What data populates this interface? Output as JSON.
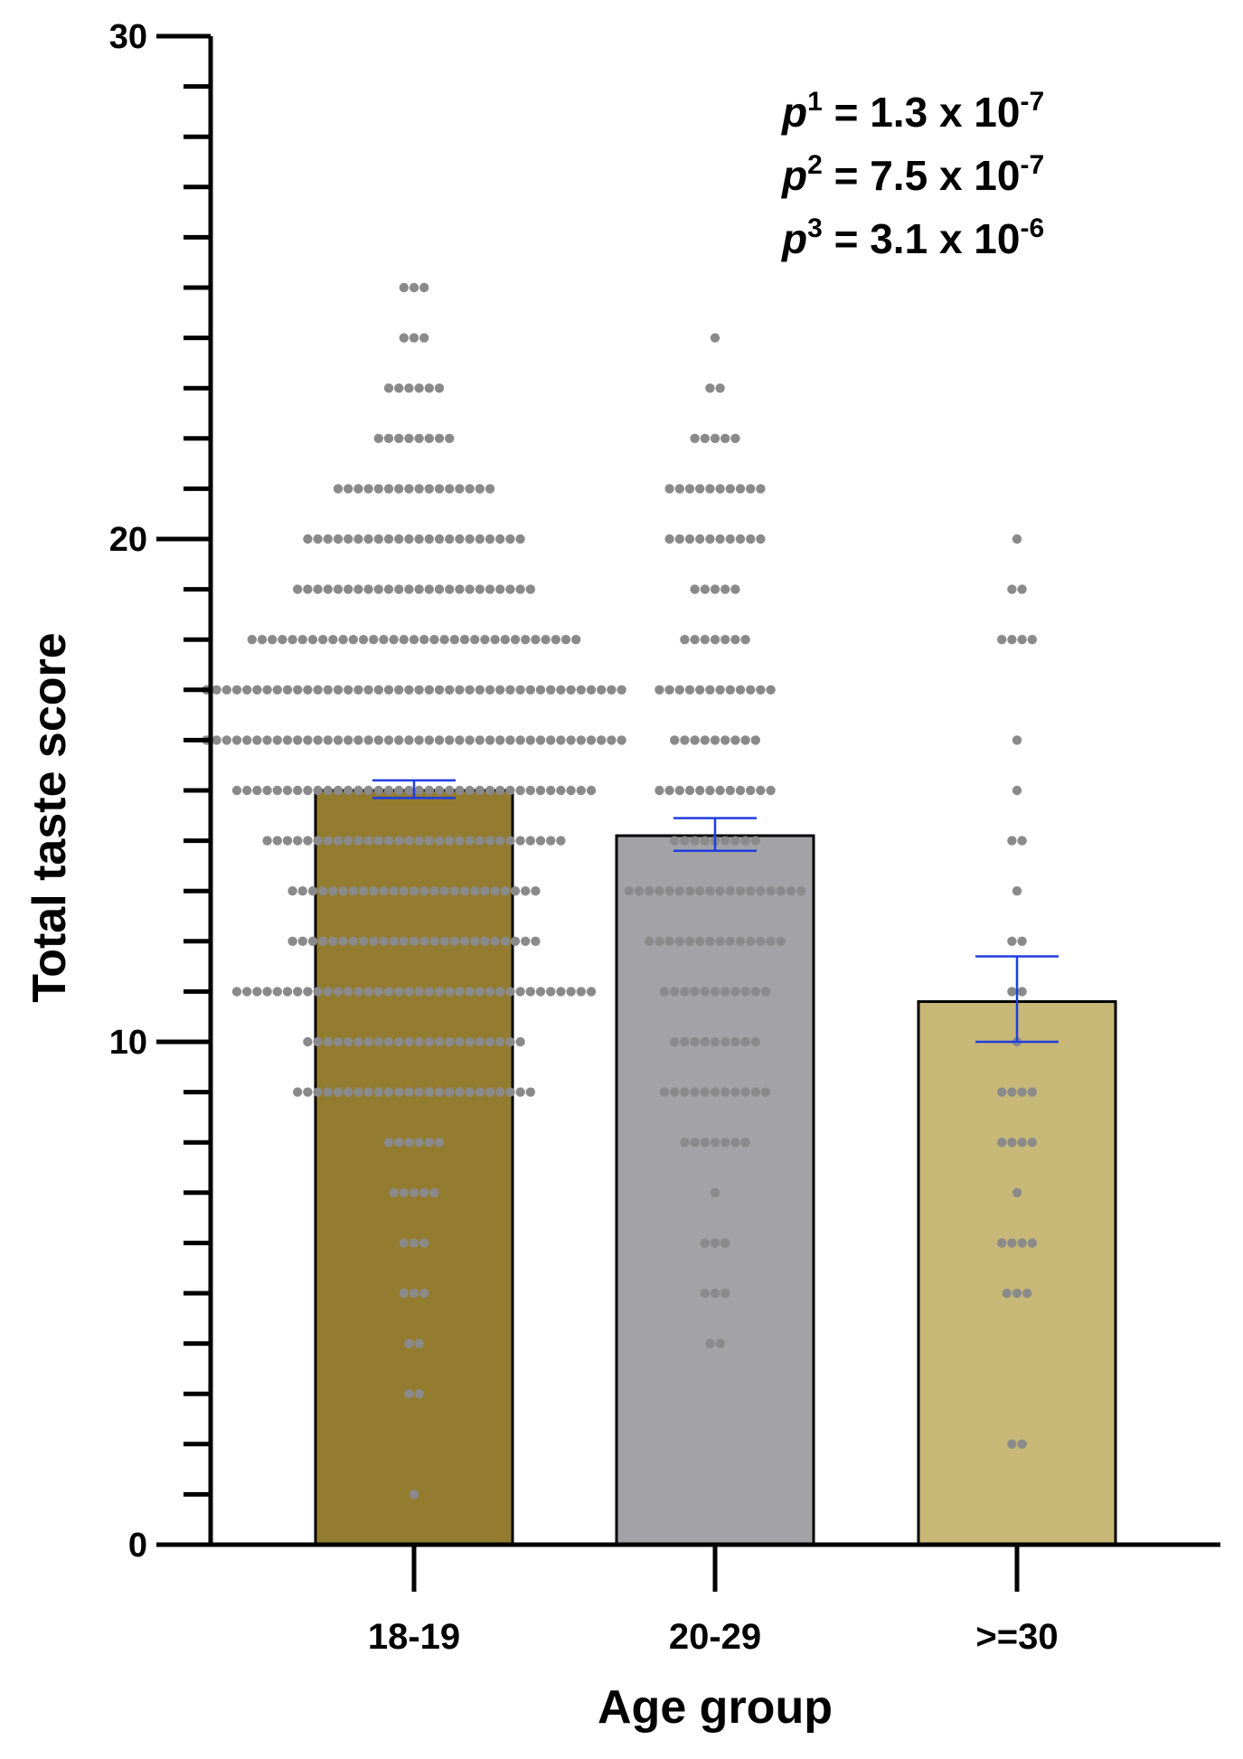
{
  "chart_data": {
    "type": "bar",
    "xlabel": "Age group",
    "ylabel": "Total taste score",
    "ylim": [
      0,
      30
    ],
    "major_ticks": [
      0,
      10,
      20,
      30
    ],
    "minor_tick_step": 1,
    "grid": false,
    "categories": [
      "18-19",
      "20-29",
      ">=30"
    ],
    "values": [
      15.0,
      14.1,
      10.8
    ],
    "error_bars": [
      {
        "low": 14.85,
        "high": 15.2
      },
      {
        "low": 13.8,
        "high": 14.45
      },
      {
        "low": 10.0,
        "high": 11.7
      }
    ],
    "bar_colors": [
      "#937c30",
      "#a3a3a7",
      "#c8b878"
    ],
    "error_bar_color": "#1f3de0",
    "point_color": "#8a8a8a",
    "points": [
      {
        "category": "18-19",
        "counts": [
          {
            "y": 1,
            "n": 1
          },
          {
            "y": 3,
            "n": 2
          },
          {
            "y": 4,
            "n": 2
          },
          {
            "y": 5,
            "n": 3
          },
          {
            "y": 6,
            "n": 3
          },
          {
            "y": 7,
            "n": 5
          },
          {
            "y": 8,
            "n": 6
          },
          {
            "y": 9,
            "n": 24
          },
          {
            "y": 10,
            "n": 22
          },
          {
            "y": 11,
            "n": 36
          },
          {
            "y": 12,
            "n": 25
          },
          {
            "y": 13,
            "n": 25
          },
          {
            "y": 14,
            "n": 30
          },
          {
            "y": 15,
            "n": 36
          },
          {
            "y": 16,
            "n": 42
          },
          {
            "y": 17,
            "n": 42
          },
          {
            "y": 18,
            "n": 33
          },
          {
            "y": 19,
            "n": 24
          },
          {
            "y": 20,
            "n": 22
          },
          {
            "y": 21,
            "n": 16
          },
          {
            "y": 22,
            "n": 8
          },
          {
            "y": 23,
            "n": 6
          },
          {
            "y": 24,
            "n": 3
          },
          {
            "y": 25,
            "n": 3
          }
        ]
      },
      {
        "category": "20-29",
        "counts": [
          {
            "y": 4,
            "n": 2
          },
          {
            "y": 5,
            "n": 3
          },
          {
            "y": 6,
            "n": 3
          },
          {
            "y": 7,
            "n": 1
          },
          {
            "y": 8,
            "n": 7
          },
          {
            "y": 9,
            "n": 11
          },
          {
            "y": 10,
            "n": 9
          },
          {
            "y": 11,
            "n": 11
          },
          {
            "y": 12,
            "n": 14
          },
          {
            "y": 13,
            "n": 18
          },
          {
            "y": 14,
            "n": 9
          },
          {
            "y": 15,
            "n": 12
          },
          {
            "y": 16,
            "n": 9
          },
          {
            "y": 17,
            "n": 12
          },
          {
            "y": 18,
            "n": 7
          },
          {
            "y": 19,
            "n": 5
          },
          {
            "y": 20,
            "n": 10
          },
          {
            "y": 21,
            "n": 10
          },
          {
            "y": 22,
            "n": 5
          },
          {
            "y": 23,
            "n": 2
          },
          {
            "y": 24,
            "n": 1
          }
        ]
      },
      {
        "category": ">=30",
        "counts": [
          {
            "y": 2,
            "n": 2
          },
          {
            "y": 5,
            "n": 3
          },
          {
            "y": 6,
            "n": 4
          },
          {
            "y": 7,
            "n": 1
          },
          {
            "y": 8,
            "n": 4
          },
          {
            "y": 9,
            "n": 4
          },
          {
            "y": 10,
            "n": 1
          },
          {
            "y": 11,
            "n": 2
          },
          {
            "y": 12,
            "n": 2
          },
          {
            "y": 13,
            "n": 1
          },
          {
            "y": 14,
            "n": 2
          },
          {
            "y": 15,
            "n": 1
          },
          {
            "y": 16,
            "n": 1
          },
          {
            "y": 18,
            "n": 4
          },
          {
            "y": 19,
            "n": 2
          },
          {
            "y": 20,
            "n": 1
          }
        ]
      }
    ],
    "annotations": [
      {
        "symbol": "p",
        "superscript": "1",
        "text": " = 1.3 x 10",
        "exponent": "-7"
      },
      {
        "symbol": "p",
        "superscript": "2",
        "text": " = 7.5 x 10",
        "exponent": "-7"
      },
      {
        "symbol": "p",
        "superscript": "3",
        "text": " = 3.1 x 10",
        "exponent": "-6"
      }
    ]
  }
}
